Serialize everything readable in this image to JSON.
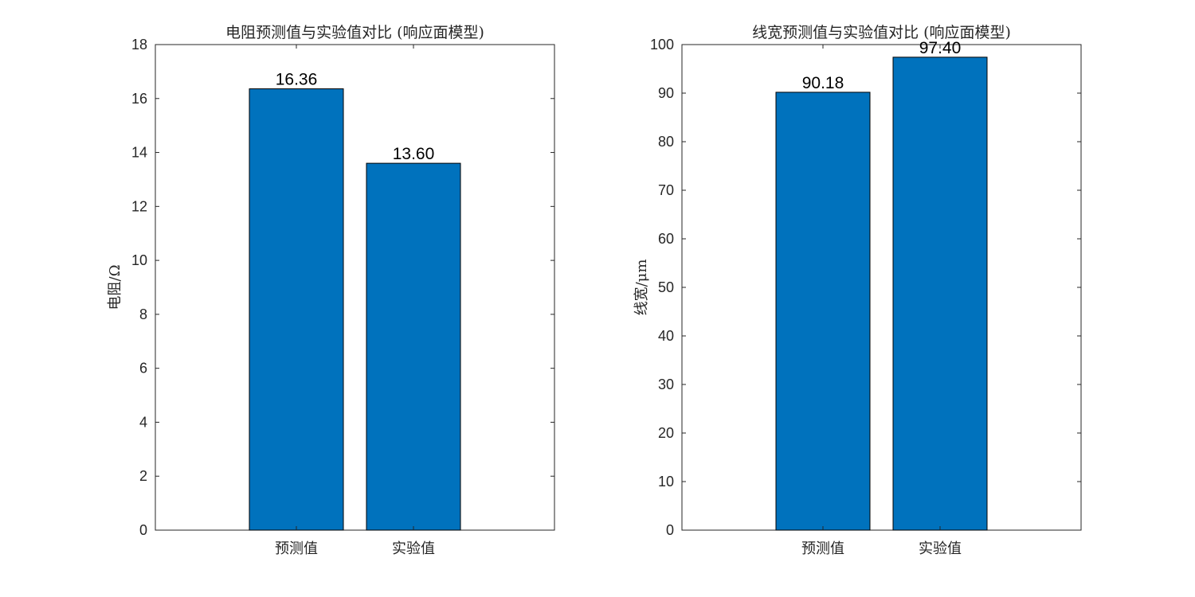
{
  "chart_data": [
    {
      "type": "bar",
      "title": "电阻预测值与实验值对比 (响应面模型)",
      "xlabel": "",
      "ylabel": "电阻/Ω",
      "categories": [
        "预测值",
        "实验值"
      ],
      "values": [
        16.36,
        13.6
      ],
      "value_labels": [
        "16.36",
        "13.60"
      ],
      "ylim": [
        0,
        18
      ],
      "yticks": [
        0,
        2,
        4,
        6,
        8,
        10,
        12,
        14,
        16,
        18
      ],
      "bar_color": "#0072BD",
      "grid": false
    },
    {
      "type": "bar",
      "title": "线宽预测值与实验值对比 (响应面模型)",
      "xlabel": "",
      "ylabel": "线宽/μm",
      "categories": [
        "预测值",
        "实验值"
      ],
      "values": [
        90.18,
        97.4
      ],
      "value_labels": [
        "90.18",
        "97.40"
      ],
      "ylim": [
        0,
        100
      ],
      "yticks": [
        0,
        10,
        20,
        30,
        40,
        50,
        60,
        70,
        80,
        90,
        100
      ],
      "bar_color": "#0072BD",
      "grid": false
    }
  ]
}
